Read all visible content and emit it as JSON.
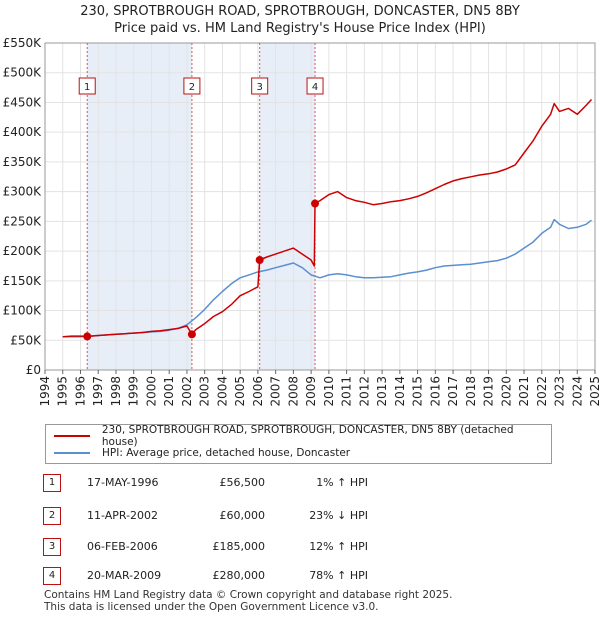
{
  "title_line1": "230, SPROTBROUGH ROAD, SPROTBROUGH, DONCASTER, DN5 8BY",
  "title_line2": "Price paid vs. HM Land Registry's House Price Index (HPI)",
  "colors": {
    "property": "#cc0000",
    "hpi": "#5b8fcf",
    "shade": "#e8eef8",
    "marker_border": "#b11"
  },
  "chart_data": {
    "type": "line",
    "xlim": [
      1994,
      2025
    ],
    "ylim": [
      0,
      550000
    ],
    "x_ticks": [
      "1994",
      "1995",
      "1996",
      "1997",
      "1998",
      "1999",
      "2000",
      "2001",
      "2002",
      "2003",
      "2004",
      "2005",
      "2006",
      "2007",
      "2008",
      "2009",
      "2010",
      "2011",
      "2012",
      "2013",
      "2014",
      "2015",
      "2016",
      "2017",
      "2018",
      "2019",
      "2020",
      "2021",
      "2022",
      "2023",
      "2024",
      "2025"
    ],
    "y_ticks": [
      {
        "value": 0,
        "label": "£0"
      },
      {
        "value": 50000,
        "label": "£50K"
      },
      {
        "value": 100000,
        "label": "£100K"
      },
      {
        "value": 150000,
        "label": "£150K"
      },
      {
        "value": 200000,
        "label": "£200K"
      },
      {
        "value": 250000,
        "label": "£250K"
      },
      {
        "value": 300000,
        "label": "£300K"
      },
      {
        "value": 350000,
        "label": "£350K"
      },
      {
        "value": 400000,
        "label": "£400K"
      },
      {
        "value": 450000,
        "label": "£450K"
      },
      {
        "value": 500000,
        "label": "£500K"
      },
      {
        "value": 550000,
        "label": "£550K"
      }
    ],
    "shaded_spans": [
      [
        1996.38,
        2002.28
      ],
      [
        2006.1,
        2009.22
      ]
    ],
    "series": [
      {
        "name": "230, SPROTBROUGH ROAD, SPROTBROUGH, DONCASTER, DN5 8BY (detached house)",
        "color": "#cc0000",
        "x": [
          1995.0,
          1995.5,
          1996.0,
          1996.38,
          1996.6,
          1997.0,
          1997.5,
          1998.0,
          1998.5,
          1999.0,
          1999.5,
          2000.0,
          2000.5,
          2001.0,
          2001.5,
          2002.0,
          2002.28,
          2002.5,
          2003.0,
          2003.5,
          2004.0,
          2004.5,
          2005.0,
          2005.5,
          2006.0,
          2006.1,
          2006.5,
          2007.0,
          2007.5,
          2008.0,
          2008.5,
          2009.0,
          2009.18,
          2009.22,
          2009.5,
          2010.0,
          2010.5,
          2011.0,
          2011.5,
          2012.0,
          2012.5,
          2013.0,
          2013.5,
          2014.0,
          2014.5,
          2015.0,
          2015.5,
          2016.0,
          2016.5,
          2017.0,
          2017.5,
          2018.0,
          2018.5,
          2019.0,
          2019.5,
          2020.0,
          2020.5,
          2021.0,
          2021.5,
          2022.0,
          2022.5,
          2022.7,
          2023.0,
          2023.5,
          2024.0,
          2024.5,
          2024.8
        ],
        "y": [
          56000,
          57000,
          57000,
          56500,
          57000,
          58000,
          59000,
          60000,
          61000,
          62000,
          63000,
          65000,
          66000,
          68000,
          70000,
          74000,
          60000,
          68000,
          78000,
          90000,
          98000,
          110000,
          125000,
          132000,
          140000,
          185000,
          190000,
          195000,
          200000,
          205000,
          195000,
          185000,
          175000,
          280000,
          285000,
          295000,
          300000,
          290000,
          285000,
          282000,
          278000,
          280000,
          283000,
          285000,
          288000,
          292000,
          298000,
          305000,
          312000,
          318000,
          322000,
          325000,
          328000,
          330000,
          333000,
          338000,
          345000,
          365000,
          385000,
          410000,
          430000,
          448000,
          435000,
          440000,
          430000,
          445000,
          455000
        ]
      },
      {
        "name": "HPI: Average price, detached house, Doncaster",
        "color": "#5b8fcf",
        "x": [
          1995.0,
          1995.5,
          1996.0,
          1996.5,
          1997.0,
          1997.5,
          1998.0,
          1998.5,
          1999.0,
          1999.5,
          2000.0,
          2000.5,
          2001.0,
          2001.5,
          2002.0,
          2002.5,
          2003.0,
          2003.5,
          2004.0,
          2004.5,
          2005.0,
          2005.5,
          2006.0,
          2006.5,
          2007.0,
          2007.5,
          2008.0,
          2008.5,
          2009.0,
          2009.5,
          2010.0,
          2010.5,
          2011.0,
          2011.5,
          2012.0,
          2012.5,
          2013.0,
          2013.5,
          2014.0,
          2014.5,
          2015.0,
          2015.5,
          2016.0,
          2016.5,
          2017.0,
          2017.5,
          2018.0,
          2018.5,
          2019.0,
          2019.5,
          2020.0,
          2020.5,
          2021.0,
          2021.5,
          2022.0,
          2022.5,
          2022.7,
          2023.0,
          2023.5,
          2024.0,
          2024.5,
          2024.8
        ],
        "y": [
          56000,
          56000,
          56000,
          57000,
          58000,
          59000,
          60000,
          61000,
          62000,
          63000,
          64000,
          65000,
          67000,
          70000,
          76000,
          88000,
          102000,
          118000,
          132000,
          145000,
          155000,
          160000,
          165000,
          168000,
          172000,
          176000,
          180000,
          172000,
          160000,
          155000,
          160000,
          162000,
          160000,
          157000,
          155000,
          155000,
          156000,
          157000,
          160000,
          163000,
          165000,
          168000,
          172000,
          175000,
          176000,
          177000,
          178000,
          180000,
          182000,
          184000,
          188000,
          195000,
          205000,
          215000,
          230000,
          240000,
          253000,
          245000,
          238000,
          240000,
          245000,
          252000
        ]
      }
    ],
    "sale_markers": [
      {
        "label": "1",
        "x": 1996.38,
        "y": 56500
      },
      {
        "label": "2",
        "x": 2002.28,
        "y": 60000
      },
      {
        "label": "3",
        "x": 2006.1,
        "y": 185000
      },
      {
        "label": "4",
        "x": 2009.22,
        "y": 280000
      }
    ]
  },
  "legend": {
    "property_label": "230, SPROTBROUGH ROAD, SPROTBROUGH, DONCASTER, DN5 8BY (detached house)",
    "hpi_label": "HPI: Average price, detached house, Doncaster"
  },
  "transactions": [
    {
      "num": "1",
      "date": "17-MAY-1996",
      "price": "£56,500",
      "hpi": "1% ↑ HPI"
    },
    {
      "num": "2",
      "date": "11-APR-2002",
      "price": "£60,000",
      "hpi": "23% ↓ HPI"
    },
    {
      "num": "3",
      "date": "06-FEB-2006",
      "price": "£185,000",
      "hpi": "12% ↑ HPI"
    },
    {
      "num": "4",
      "date": "20-MAR-2009",
      "price": "£280,000",
      "hpi": "78% ↑ HPI"
    }
  ],
  "footer": {
    "line1": "Contains HM Land Registry data © Crown copyright and database right 2025.",
    "line2": "This data is licensed under the Open Government Licence v3.0."
  }
}
